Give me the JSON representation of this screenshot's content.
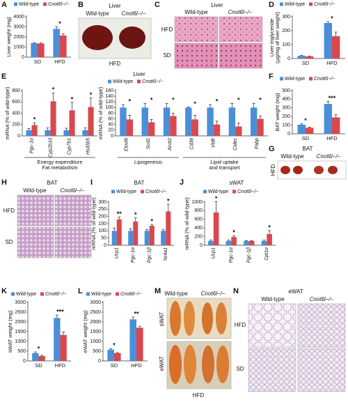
{
  "chart_data": [
    {
      "panel": "A",
      "type": "bar",
      "ylabel": "Liver weight (mg)",
      "categories": [
        "SD",
        "HFD"
      ],
      "ylim": [
        0,
        4000
      ],
      "yticks": [
        0,
        1000,
        2000,
        3000,
        4000
      ],
      "legend": "top",
      "series": [
        {
          "name": "Wild-type",
          "color": "#4a8fd8",
          "values": [
            1380,
            2800
          ],
          "errors": [
            60,
            200
          ]
        },
        {
          "name": "Cnot6l−/−",
          "color": "#d9484f",
          "values": [
            1350,
            2150
          ],
          "errors": [
            50,
            180
          ]
        }
      ],
      "significance": [
        null,
        "*"
      ]
    },
    {
      "panel": "D",
      "type": "bar",
      "ylabel": [
        "Liver triglyceride",
        "(μg/mg of liver weight)"
      ],
      "categories": [
        "SD",
        "HFD"
      ],
      "ylim": [
        0,
        300
      ],
      "yticks": [
        0,
        100,
        200,
        300
      ],
      "legend": "top",
      "series": [
        {
          "name": "Wild-type",
          "color": "#4a8fd8",
          "values": [
            20,
            255
          ],
          "errors": [
            3,
            10
          ]
        },
        {
          "name": "Cnot6l−/−",
          "color": "#d9484f",
          "values": [
            15,
            160
          ],
          "errors": [
            2,
            30
          ]
        }
      ],
      "significance": [
        null,
        "*"
      ]
    },
    {
      "panel": "E",
      "type": "bar",
      "title": "Liver",
      "ylabel": "mRNA (% of wild-type)",
      "categories": [
        "Pgc-1α",
        "Cyp2b10",
        "Cyp7b1",
        "Hsd3b5"
      ],
      "category_style": "italic",
      "ylim": [
        0,
        800
      ],
      "yticks": [
        0,
        200,
        400,
        600,
        800
      ],
      "legend": "top",
      "series": [
        {
          "name": "Wild-type",
          "color": "#4a8fd8",
          "values": [
            100,
            100,
            100,
            100
          ],
          "errors": [
            30,
            40,
            35,
            40
          ]
        },
        {
          "name": "Cnot6l−/−",
          "color": "#d9484f",
          "values": [
            190,
            610,
            450,
            510
          ],
          "errors": [
            40,
            150,
            140,
            160
          ]
        }
      ],
      "significance": [
        "*",
        "*",
        "*",
        "*"
      ],
      "groups": [
        {
          "label": [
            "Energy expenditure",
            "Fat metabolism"
          ],
          "categories": [
            "Pgc-1α",
            "Cyp2b10",
            "Cyp7b1",
            "Hsd3b5"
          ]
        }
      ]
    },
    {
      "type": "bar",
      "ylabel": "mRNA (% of wild-type)",
      "categories": [
        "Elovl6",
        "Scd1",
        "Acot2",
        "Cd36",
        "Vldlr",
        "Cidec",
        "Fabp"
      ],
      "category_style": "italic",
      "ylim": [
        0,
        160
      ],
      "yticks": [
        0,
        20,
        40,
        60,
        80,
        100,
        120,
        140,
        160
      ],
      "series": [
        {
          "color": "#4a8fd8",
          "values": [
            100,
            100,
            100,
            100,
            100,
            100,
            100
          ],
          "errors": [
            10,
            15,
            15,
            2,
            10,
            15,
            15
          ]
        },
        {
          "color": "#d9484f",
          "values": [
            58,
            48,
            70,
            58,
            40,
            33,
            60
          ],
          "errors": [
            15,
            10,
            10,
            15,
            12,
            12,
            10
          ]
        }
      ],
      "significance": [
        "*",
        "*",
        "*",
        "*",
        "*",
        "*",
        "*"
      ],
      "groups": [
        {
          "label": "Lipogenesis",
          "categories": [
            "Elovl6",
            "Scd1",
            "Acot2"
          ]
        },
        {
          "label": [
            "Lipid uptake",
            "and transport"
          ],
          "categories": [
            "Cd36",
            "Vldlr",
            "Cidec",
            "Fabp"
          ]
        }
      ]
    },
    {
      "panel": "F",
      "type": "bar",
      "ylabel": "BAT weight (mg)",
      "categories": [
        "SD",
        "HFD"
      ],
      "ylim": [
        0,
        500
      ],
      "yticks": [
        0,
        100,
        200,
        300,
        400,
        500
      ],
      "legend": "top",
      "series": [
        {
          "name": "Wild-type",
          "color": "#4a8fd8",
          "values": [
            105,
            345
          ],
          "errors": [
            10,
            30
          ]
        },
        {
          "name": "Cnot6l−/−",
          "color": "#d9484f",
          "values": [
            70,
            190
          ],
          "errors": [
            8,
            30
          ]
        }
      ],
      "significance": [
        "*",
        "***"
      ]
    },
    {
      "panel": "I",
      "type": "bar",
      "title": "BAT",
      "ylabel": "mRNA (% of wild-type)",
      "categories": [
        "Ucp1",
        "Pgc-1α",
        "Pgc-1β",
        "Nr4a1"
      ],
      "category_style": "italic",
      "ylim": [
        0,
        300
      ],
      "yticks": [
        0,
        50,
        100,
        150,
        200,
        250,
        300
      ],
      "legend": "top",
      "series": [
        {
          "name": "Wild-type",
          "color": "#4a8fd8",
          "values": [
            100,
            100,
            100,
            100
          ],
          "errors": [
            20,
            15,
            10,
            10
          ]
        },
        {
          "name": "Cnot6l−/−",
          "color": "#d9484f",
          "values": [
            180,
            165,
            135,
            235
          ],
          "errors": [
            15,
            25,
            10,
            50
          ]
        }
      ],
      "significance": [
        "**",
        "*",
        "*",
        "*"
      ]
    },
    {
      "panel": "J",
      "type": "bar",
      "title": "sWAT",
      "ylabel": "mRNA (% of wild-type)",
      "categories": [
        "Ucp1",
        "Pgc-1α",
        "Pgc-1β",
        "Cpt1α"
      ],
      "category_style": "italic",
      "ylim": [
        0,
        1000
      ],
      "yticks": [
        0,
        200,
        400,
        600,
        800,
        1000
      ],
      "legend": "top",
      "series": [
        {
          "name": "Wild-type",
          "color": "#4a8fd8",
          "values": [
            100,
            100,
            100,
            100
          ],
          "errors": [
            20,
            20,
            10,
            20
          ]
        },
        {
          "name": "Cnot6l−/−",
          "color": "#d9484f",
          "values": [
            760,
            190,
            100,
            260
          ],
          "errors": [
            250,
            30,
            10,
            80
          ]
        }
      ],
      "significance": [
        "*",
        "*",
        null,
        "*"
      ]
    },
    {
      "panel": "K",
      "type": "bar",
      "ylabel": "sWAT weight (mg)",
      "categories": [
        "SD",
        "HFD"
      ],
      "ylim": [
        0,
        3000
      ],
      "yticks": [
        0,
        500,
        1000,
        1500,
        2000,
        2500,
        3000
      ],
      "legend": "top",
      "series": [
        {
          "name": "Wild-type",
          "color": "#4a8fd8",
          "values": [
            400,
            2200
          ],
          "errors": [
            60,
            150
          ]
        },
        {
          "name": "Cnot6l−/−",
          "color": "#d9484f",
          "values": [
            250,
            1330
          ],
          "errors": [
            40,
            150
          ]
        }
      ],
      "significance": [
        "*",
        "***"
      ]
    },
    {
      "panel": "L",
      "type": "bar",
      "ylabel": "eWAT weight (mg)",
      "categories": [
        "SD",
        "HFD"
      ],
      "ylim": [
        0,
        3000
      ],
      "yticks": [
        0,
        500,
        1000,
        1500,
        2000,
        2500,
        3000
      ],
      "legend": "top",
      "series": [
        {
          "name": "Wild-type",
          "color": "#4a8fd8",
          "values": [
            580,
            2130
          ],
          "errors": [
            50,
            120
          ]
        },
        {
          "name": "Cnot6l−/−",
          "color": "#d9484f",
          "values": [
            400,
            1700
          ],
          "errors": [
            30,
            80
          ]
        }
      ],
      "significance": [
        "*",
        "**"
      ]
    }
  ],
  "image_panels": [
    {
      "panel": "B",
      "title": "Liver",
      "columns": [
        "Wild-type",
        "Cnot6l−/−"
      ],
      "footer": "HFD"
    },
    {
      "panel": "C",
      "title": "Liver",
      "columns": [
        "Wild-type",
        "Cnot6l−/−"
      ],
      "rows": [
        "HFD",
        "SD"
      ]
    },
    {
      "panel": "G",
      "title": "BAT",
      "columns": [
        "Wild-type",
        "Cnot6l−/−"
      ],
      "rows": [
        "HFD"
      ]
    },
    {
      "panel": "H",
      "title": "BAT",
      "columns": [
        "Wild-type",
        "Cnot6l−/−"
      ],
      "rows": [
        "HFD",
        "SD"
      ]
    },
    {
      "panel": "M",
      "columns": [
        "Wild-type",
        "Cnot6l−/−"
      ],
      "rows": [
        "sWAT",
        "eWAT"
      ],
      "footer": "HFD"
    },
    {
      "panel": "N",
      "title": "eWAT",
      "columns": [
        "Wild-type",
        "Cnot6l−/−"
      ],
      "rows": [
        "HFD",
        "SD"
      ]
    }
  ]
}
